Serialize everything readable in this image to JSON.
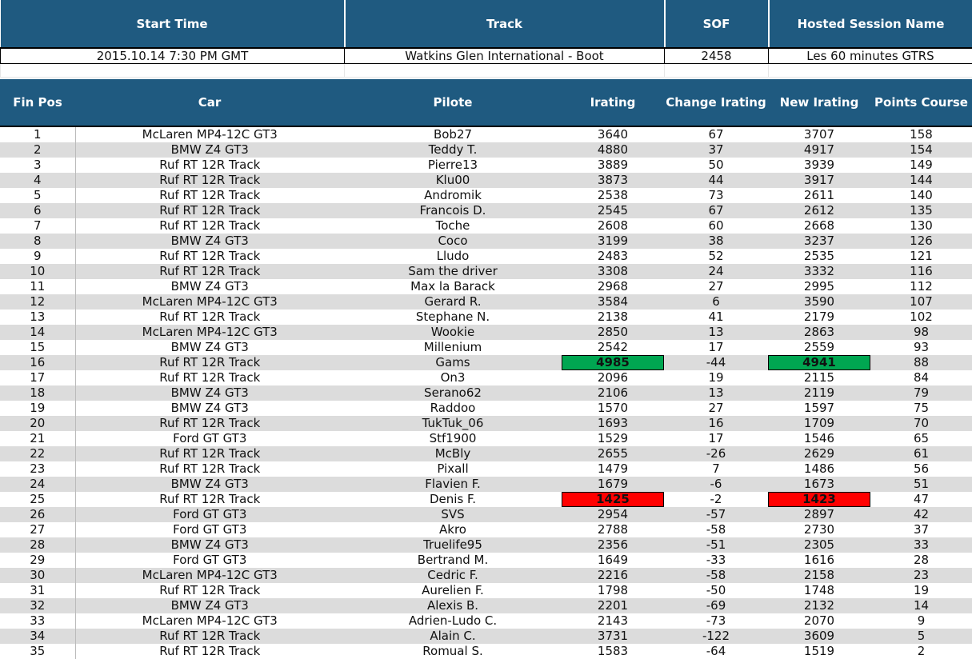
{
  "session": {
    "headers": [
      "Start Time",
      "Track",
      "SOF",
      "Hosted Session Name"
    ],
    "values": [
      "2015.10.14 7:30 PM GMT",
      "Watkins Glen International - Boot",
      "2458",
      "Les 60 minutes GTRS"
    ]
  },
  "results": {
    "headers": [
      "Fin Pos",
      "Car",
      "Pilote",
      "Irating",
      "Change Irating",
      "New Irating",
      "Points Course"
    ],
    "highlight_colors": {
      "green": "#00a651",
      "red": "#ff0000"
    },
    "rows": [
      [
        "1",
        "McLaren MP4-12C GT3",
        "Bob27",
        "3640",
        "67",
        "3707",
        "158"
      ],
      [
        "2",
        "BMW Z4 GT3",
        "Teddy T.",
        "4880",
        "37",
        "4917",
        "154"
      ],
      [
        "3",
        "Ruf RT 12R Track",
        "Pierre13",
        "3889",
        "50",
        "3939",
        "149"
      ],
      [
        "4",
        "Ruf RT 12R Track",
        "Klu00",
        "3873",
        "44",
        "3917",
        "144"
      ],
      [
        "5",
        "Ruf RT 12R Track",
        "Andromik",
        "2538",
        "73",
        "2611",
        "140"
      ],
      [
        "6",
        "Ruf RT 12R Track",
        "Francois D.",
        "2545",
        "67",
        "2612",
        "135"
      ],
      [
        "7",
        "Ruf RT 12R Track",
        "Toche",
        "2608",
        "60",
        "2668",
        "130"
      ],
      [
        "8",
        "BMW Z4 GT3",
        "Coco",
        "3199",
        "38",
        "3237",
        "126"
      ],
      [
        "9",
        "Ruf RT 12R Track",
        "Lludo",
        "2483",
        "52",
        "2535",
        "121"
      ],
      [
        "10",
        "Ruf RT 12R Track",
        "Sam the driver",
        "3308",
        "24",
        "3332",
        "116"
      ],
      [
        "11",
        "BMW Z4 GT3",
        "Max la Barack",
        "2968",
        "27",
        "2995",
        "112"
      ],
      [
        "12",
        "McLaren MP4-12C GT3",
        "Gerard R.",
        "3584",
        "6",
        "3590",
        "107"
      ],
      [
        "13",
        "Ruf RT 12R Track",
        "Stephane N.",
        "2138",
        "41",
        "2179",
        "102"
      ],
      [
        "14",
        "McLaren MP4-12C GT3",
        "Wookie",
        "2850",
        "13",
        "2863",
        "98"
      ],
      [
        "15",
        "BMW Z4 GT3",
        "Millenium",
        "2542",
        "17",
        "2559",
        "93"
      ],
      [
        "16",
        "Ruf RT 12R Track",
        "Gams",
        "4985",
        "-44",
        "4941",
        "88"
      ],
      [
        "17",
        "Ruf RT 12R Track",
        "On3",
        "2096",
        "19",
        "2115",
        "84"
      ],
      [
        "18",
        "BMW Z4 GT3",
        "Serano62",
        "2106",
        "13",
        "2119",
        "79"
      ],
      [
        "19",
        "BMW Z4 GT3",
        "Raddoo",
        "1570",
        "27",
        "1597",
        "75"
      ],
      [
        "20",
        "Ruf RT 12R Track",
        "TukTuk_06",
        "1693",
        "16",
        "1709",
        "70"
      ],
      [
        "21",
        "Ford GT GT3",
        "Stf1900",
        "1529",
        "17",
        "1546",
        "65"
      ],
      [
        "22",
        "Ruf RT 12R Track",
        "McBly",
        "2655",
        "-26",
        "2629",
        "61"
      ],
      [
        "23",
        "Ruf RT 12R Track",
        "Pixall",
        "1479",
        "7",
        "1486",
        "56"
      ],
      [
        "24",
        "BMW Z4 GT3",
        "Flavien F.",
        "1679",
        "-6",
        "1673",
        "51"
      ],
      [
        "25",
        "Ruf RT 12R Track",
        "Denis F.",
        "1425",
        "-2",
        "1423",
        "47"
      ],
      [
        "26",
        "Ford GT GT3",
        "SVS",
        "2954",
        "-57",
        "2897",
        "42"
      ],
      [
        "27",
        "Ford GT GT3",
        "Akro",
        "2788",
        "-58",
        "2730",
        "37"
      ],
      [
        "28",
        "BMW Z4 GT3",
        "Truelife95",
        "2356",
        "-51",
        "2305",
        "33"
      ],
      [
        "29",
        "Ford GT GT3",
        "Bertrand M.",
        "1649",
        "-33",
        "1616",
        "28"
      ],
      [
        "30",
        "McLaren MP4-12C GT3",
        "Cedric F.",
        "2216",
        "-58",
        "2158",
        "23"
      ],
      [
        "31",
        "Ruf RT 12R Track",
        "Aurelien F.",
        "1798",
        "-50",
        "1748",
        "19"
      ],
      [
        "32",
        "BMW Z4 GT3",
        "Alexis B.",
        "2201",
        "-69",
        "2132",
        "14"
      ],
      [
        "33",
        "McLaren MP4-12C GT3",
        "Adrien-Ludo C.",
        "2143",
        "-73",
        "2070",
        "9"
      ],
      [
        "34",
        "Ruf RT 12R Track",
        "Alain C.",
        "3731",
        "-122",
        "3609",
        "5"
      ],
      [
        "35",
        "Ruf RT 12R Track",
        "Romual S.",
        "1583",
        "-64",
        "1519",
        "2"
      ]
    ]
  }
}
